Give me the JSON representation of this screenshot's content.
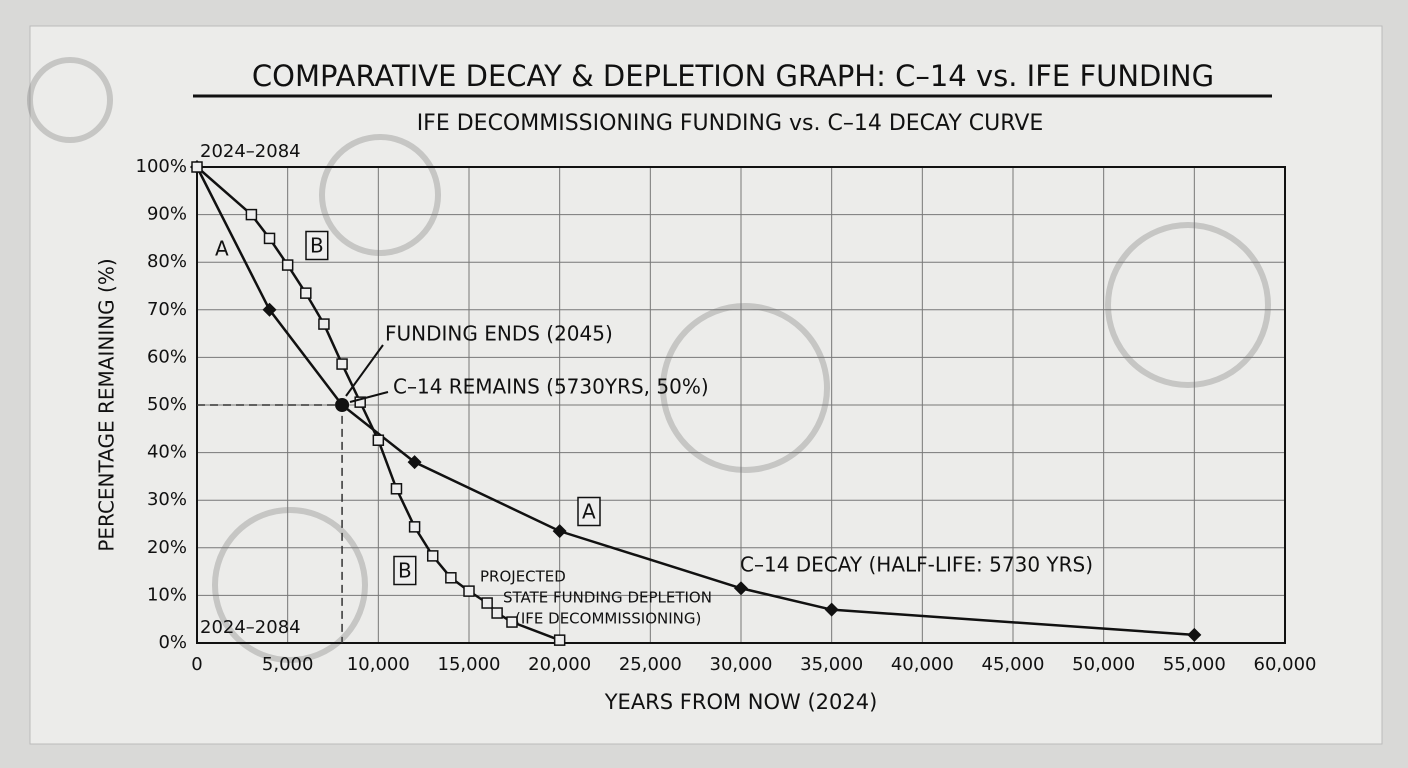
{
  "chart_data": {
    "type": "line",
    "title": "COMPARATIVE DECAY & DEPLETION GRAPH: C–14 vs. IFE FUNDING",
    "subtitle": "IFE DECOMMISSIONING FUNDING vs. C–14 DECAY CURVE",
    "x_label": "YEARS FROM NOW (2024)",
    "y_label": "PERCENTAGE REMAINING (%)",
    "xlim": [
      0,
      60000
    ],
    "ylim": [
      0,
      100
    ],
    "xticks": [
      0,
      {
        "value": 5000,
        "label": "5,000"
      },
      {
        "value": 10000,
        "label": "10,000"
      },
      {
        "value": 15000,
        "label": "15,000"
      },
      {
        "value": 20000,
        "label": "20,000"
      },
      {
        "value": 25000,
        "label": "25,000"
      },
      {
        "value": 30000,
        "label": "30,000"
      },
      {
        "value": 35000,
        "label": "35,000"
      },
      {
        "value": 40000,
        "label": "40,000"
      },
      {
        "value": 45000,
        "label": "45,000"
      },
      {
        "value": 50000,
        "label": "50,000"
      },
      {
        "value": 55000,
        "label": "55,000"
      },
      {
        "value": 60000,
        "label": "60,000"
      }
    ],
    "yticks": [
      {
        "value": 0,
        "label": "0%"
      },
      {
        "value": 10,
        "label": "10%"
      },
      {
        "value": 20,
        "label": "20%"
      },
      {
        "value": 30,
        "label": "30%"
      },
      {
        "value": 40,
        "label": "40%"
      },
      {
        "value": 50,
        "label": "50%"
      },
      {
        "value": 60,
        "label": "60%"
      },
      {
        "value": 70,
        "label": "70%"
      },
      {
        "value": 80,
        "label": "80%"
      },
      {
        "value": 90,
        "label": "90%"
      },
      {
        "value": 100,
        "label": "100%"
      }
    ],
    "grid": true,
    "series": [
      {
        "color": "#111111",
        "marker": "diamond",
        "x": [
          0,
          4000,
          8000,
          12000,
          20000,
          30000,
          35000,
          55000
        ],
        "values": [
          100,
          70,
          50,
          38,
          23.5,
          11.5,
          7,
          1.7
        ]
      },
      {
        "color": "#111111",
        "marker": "square",
        "x": [
          0,
          3000,
          4000,
          5000,
          6000,
          7000,
          8000,
          9000,
          10000,
          11000,
          12000,
          13000,
          14000,
          15000,
          16000,
          16550,
          17370,
          20000
        ],
        "values": [
          100,
          90,
          85,
          79.4,
          73.5,
          67,
          58.6,
          50.6,
          42.6,
          32.4,
          24.4,
          18.3,
          13.7,
          10.9,
          8.4,
          6.3,
          4.4,
          0.6
        ]
      }
    ],
    "annotations": [
      "2024–2084",
      "2024–2084",
      "A",
      "B",
      "A",
      "B",
      "FUNDING ENDS (2045)",
      "C–14 REMAINS (5730YRS, 50%)",
      "C–14 DECAY (HALF-LIFE: 5730 YRS)",
      "PROJECTED",
      "STATE FUNDING DEPLETION",
      "(IFE DECOMMISSIONING)"
    ]
  }
}
